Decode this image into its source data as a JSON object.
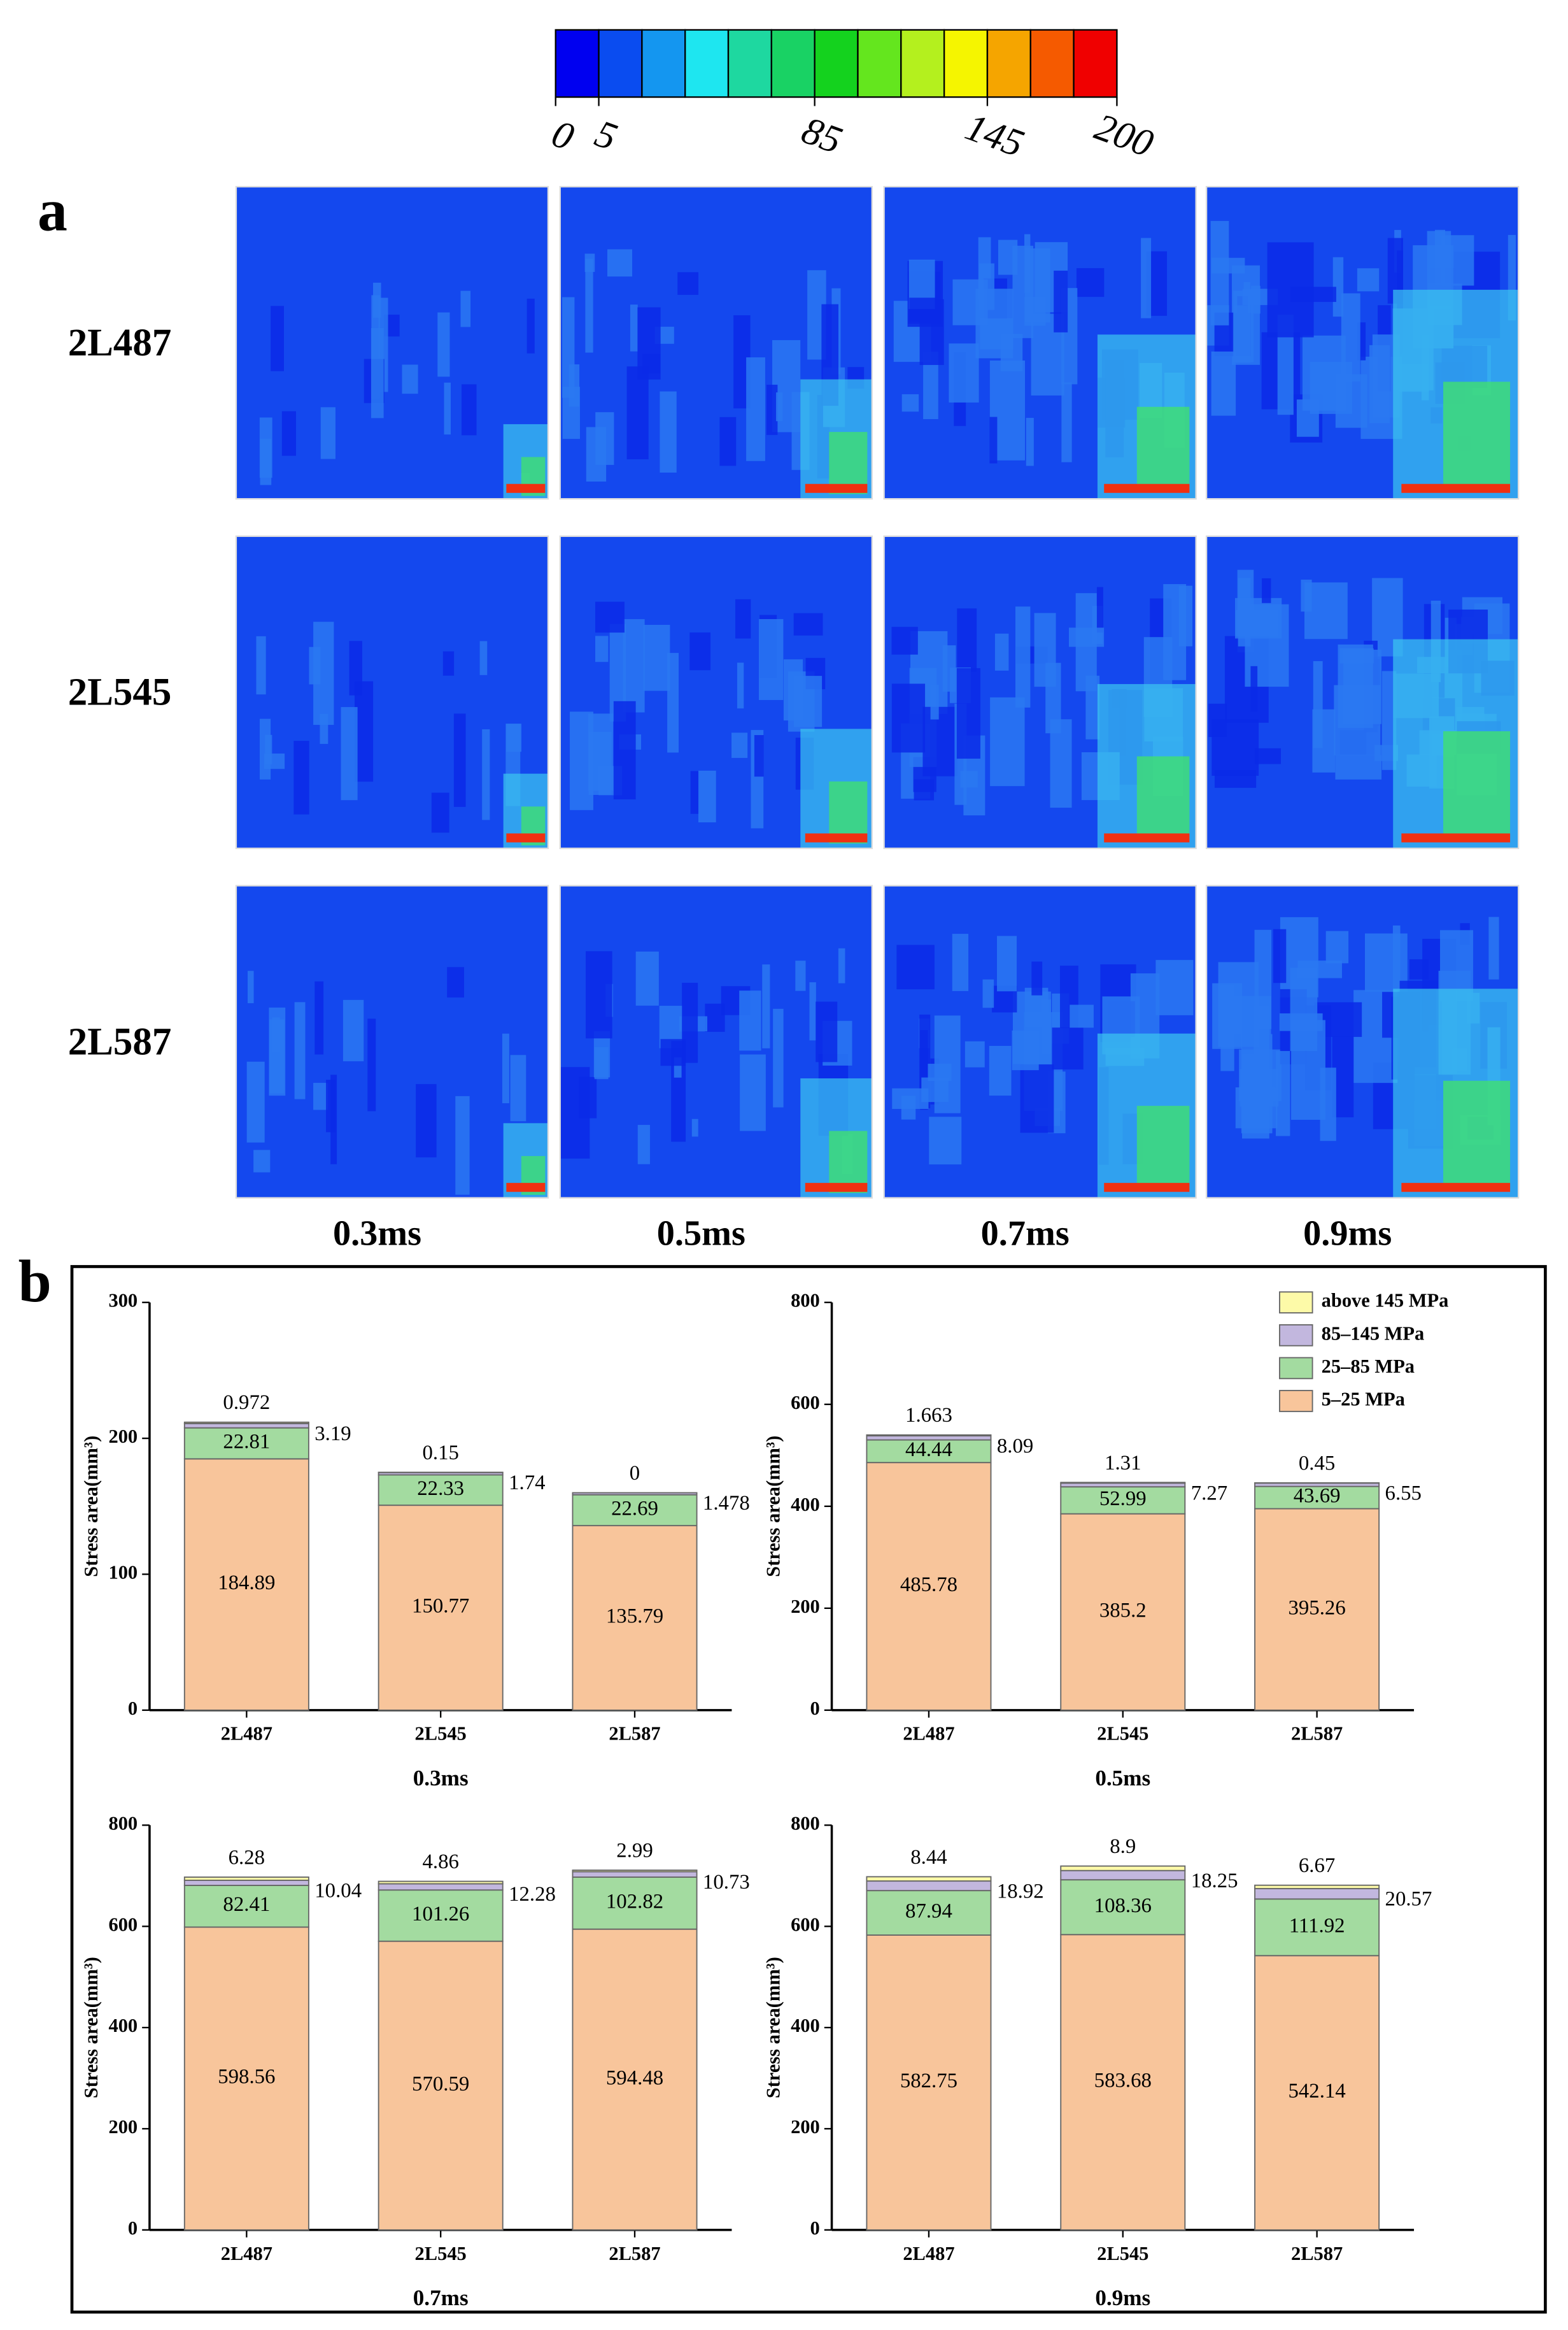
{
  "panel_labels": [
    "a",
    "b"
  ],
  "stress_maps": {
    "rows": [
      "2L487",
      "2L545",
      "2L587"
    ],
    "columns": [
      "0.3ms",
      "0.5ms",
      "0.7ms",
      "0.9ms"
    ],
    "colorbar_colors": [
      "#0000f0",
      "#0a4cf0",
      "#1496f0",
      "#1ee6f0",
      "#1ed8a0",
      "#19d264",
      "#14d21e",
      "#64e61e",
      "#b4f01e",
      "#f5f500",
      "#f5a500",
      "#f55a00",
      "#f00000"
    ],
    "colorbar_ticks": [
      0,
      5,
      85,
      145,
      200
    ]
  },
  "chart_data": [
    {
      "type": "bar",
      "stacked": true,
      "x_label": "0.3ms",
      "y_label": "Stress area(mm³)",
      "categories": [
        "2L487",
        "2L545",
        "2L587"
      ],
      "ylim": [
        0,
        300
      ],
      "yticks": [
        0,
        100,
        200,
        300
      ],
      "series": [
        {
          "color": "#f8c59b",
          "values": [
            184.89,
            150.77,
            135.79
          ]
        },
        {
          "color": "#a3dba0",
          "values": [
            22.81,
            22.33,
            22.69
          ]
        },
        {
          "color": "#c2b7de",
          "values": [
            3.19,
            1.74,
            1.478
          ]
        },
        {
          "color": "#fdfaa8",
          "values": [
            0.972,
            0.15,
            0
          ]
        }
      ]
    },
    {
      "type": "bar",
      "stacked": true,
      "x_label": "0.5ms",
      "y_label": "Stress area(mm³)",
      "categories": [
        "2L487",
        "2L545",
        "2L587"
      ],
      "ylim": [
        0,
        800
      ],
      "yticks": [
        0,
        200,
        400,
        600,
        800
      ],
      "legend": "upper right",
      "series": [
        {
          "name": "5–25 MPa",
          "color": "#f8c59b",
          "values": [
            485.78,
            385.2,
            395.26
          ]
        },
        {
          "name": "25–85 MPa",
          "color": "#a3dba0",
          "values": [
            44.44,
            52.99,
            43.69
          ]
        },
        {
          "name": "85–145 MPa",
          "color": "#c2b7de",
          "values": [
            8.09,
            7.27,
            6.55
          ]
        },
        {
          "name": "above 145 MPa",
          "color": "#fdfaa8",
          "values": [
            1.663,
            1.31,
            0.45
          ]
        }
      ]
    },
    {
      "type": "bar",
      "stacked": true,
      "x_label": "0.7ms",
      "y_label": "Stress area(mm³)",
      "categories": [
        "2L487",
        "2L545",
        "2L587"
      ],
      "ylim": [
        0,
        800
      ],
      "yticks": [
        0,
        200,
        400,
        600,
        800
      ],
      "series": [
        {
          "color": "#f8c59b",
          "values": [
            598.56,
            570.59,
            594.48
          ]
        },
        {
          "color": "#a3dba0",
          "values": [
            82.41,
            101.26,
            102.82
          ]
        },
        {
          "color": "#c2b7de",
          "values": [
            10.04,
            12.28,
            10.73
          ]
        },
        {
          "color": "#fdfaa8",
          "values": [
            6.28,
            4.86,
            2.99
          ]
        }
      ]
    },
    {
      "type": "bar",
      "stacked": true,
      "x_label": "0.9ms",
      "y_label": "Stress area(mm³)",
      "categories": [
        "2L487",
        "2L545",
        "2L587"
      ],
      "ylim": [
        0,
        800
      ],
      "yticks": [
        0,
        200,
        400,
        600,
        800
      ],
      "series": [
        {
          "color": "#f8c59b",
          "values": [
            582.75,
            583.68,
            542.14
          ]
        },
        {
          "color": "#a3dba0",
          "values": [
            87.94,
            108.36,
            111.92
          ]
        },
        {
          "color": "#c2b7de",
          "values": [
            18.92,
            18.25,
            20.57
          ]
        },
        {
          "color": "#fdfaa8",
          "values": [
            8.44,
            8.9,
            6.67
          ]
        }
      ]
    }
  ]
}
